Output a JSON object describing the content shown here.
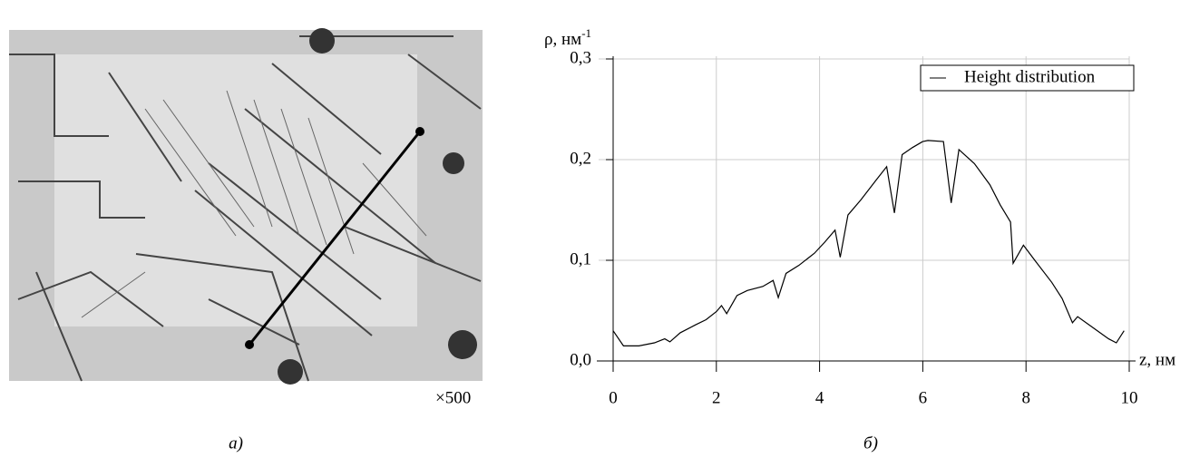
{
  "figure": {
    "magnification": "×500",
    "caption_left": "а)",
    "caption_right": "б)"
  },
  "chart_data": {
    "type": "line",
    "y_label": "ρ, нм",
    "y_label_exponent": "-1",
    "x_label": "z, нм",
    "series": [
      {
        "name": "Height distribution",
        "color": "#000000",
        "x": [
          0,
          0.2,
          0.5,
          0.8,
          1.0,
          1.1,
          1.3,
          1.6,
          1.8,
          2.0,
          2.1,
          2.2,
          2.4,
          2.6,
          2.9,
          3.1,
          3.2,
          3.35,
          3.6,
          3.9,
          4.1,
          4.3,
          4.4,
          4.55,
          4.8,
          5.1,
          5.3,
          5.45,
          5.6,
          5.8,
          6.0,
          6.1,
          6.4,
          6.55,
          6.7,
          7.0,
          7.3,
          7.5,
          7.7,
          7.75,
          7.95,
          8.2,
          8.5,
          8.7,
          8.9,
          9.0,
          9.3,
          9.6,
          9.75,
          9.9
        ],
        "values": [
          0.03,
          0.015,
          0.015,
          0.018,
          0.022,
          0.019,
          0.028,
          0.036,
          0.041,
          0.049,
          0.055,
          0.047,
          0.065,
          0.07,
          0.074,
          0.08,
          0.063,
          0.087,
          0.095,
          0.107,
          0.118,
          0.13,
          0.103,
          0.145,
          0.16,
          0.18,
          0.193,
          0.147,
          0.205,
          0.212,
          0.218,
          0.219,
          0.218,
          0.157,
          0.21,
          0.196,
          0.175,
          0.155,
          0.138,
          0.097,
          0.115,
          0.098,
          0.078,
          0.062,
          0.038,
          0.044,
          0.033,
          0.022,
          0.018,
          0.03
        ]
      }
    ],
    "xlim": [
      0,
      10
    ],
    "xticks": [
      0,
      2,
      4,
      6,
      8,
      10
    ],
    "ylim": [
      0,
      0.3
    ],
    "yticks": [
      {
        "value": 0,
        "label": "0,0"
      },
      {
        "value": 0.1,
        "label": "0,1"
      },
      {
        "value": 0.2,
        "label": "0,2"
      },
      {
        "value": 0.3,
        "label": "0,3"
      }
    ],
    "grid": true,
    "legend": "upper right"
  }
}
